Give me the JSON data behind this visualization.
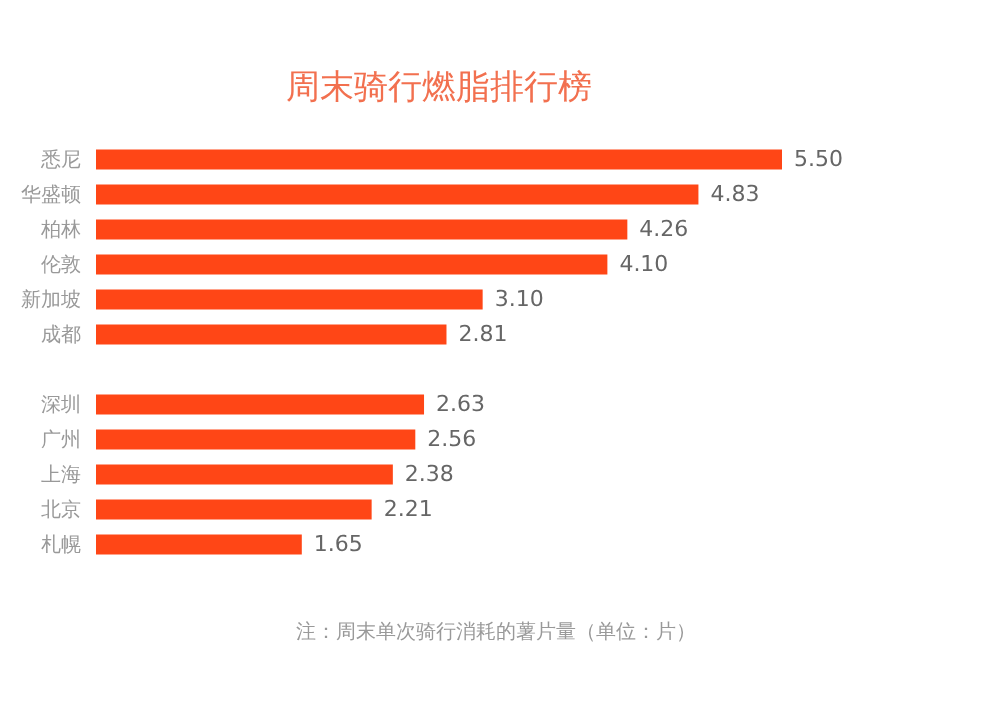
{
  "chart_data": {
    "type": "bar",
    "orientation": "horizontal",
    "title": "周末骑行燃脂排行榜",
    "categories": [
      "悉尼",
      "华盛顿",
      "柏林",
      "伦敦",
      "新加坡",
      "成都",
      null,
      "深圳",
      "广州",
      "上海",
      "北京",
      "札幌"
    ],
    "values": [
      5.5,
      4.83,
      4.26,
      4.1,
      3.1,
      2.81,
      null,
      2.63,
      2.56,
      2.38,
      2.21,
      1.65
    ],
    "value_labels": [
      "5.50",
      "4.83",
      "4.26",
      "4.10",
      "3.10",
      "2.81",
      null,
      "2.63",
      "2.56",
      "2.38",
      "2.21",
      "1.65"
    ],
    "color": "#ff4616",
    "data_labels": true,
    "annotations": [
      "注：周末单次骑行消耗的薯片量（单位：片）"
    ]
  }
}
